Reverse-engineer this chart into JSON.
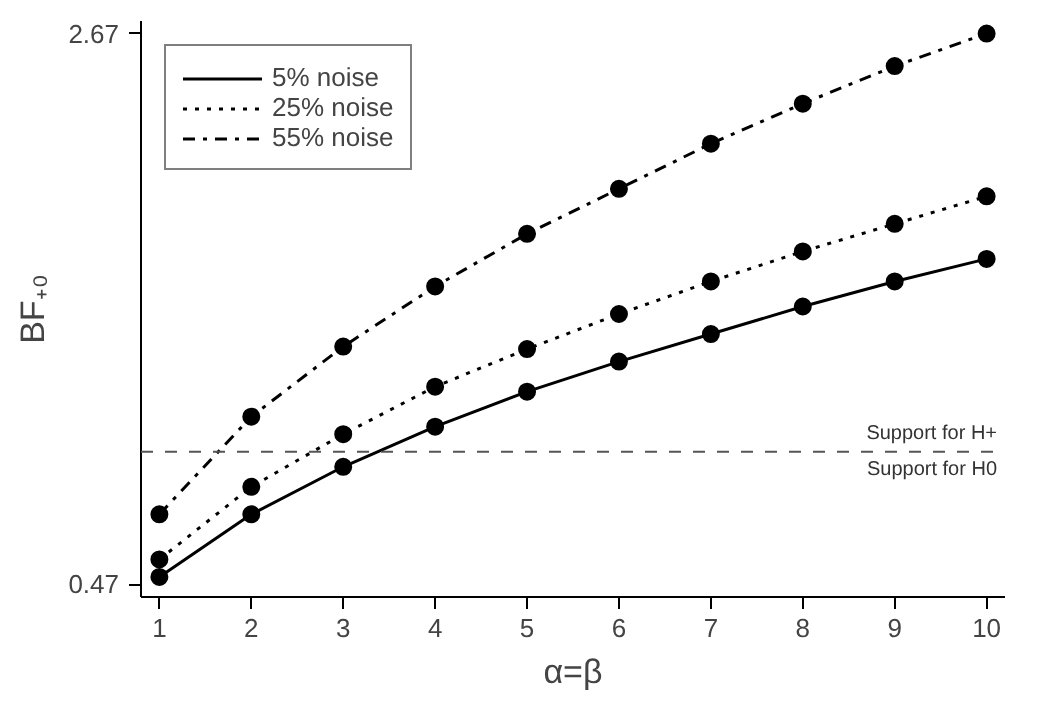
{
  "chart_data": {
    "type": "line",
    "xlabel": "α=β",
    "ylabel": "BF₊₀",
    "x": [
      1,
      2,
      3,
      4,
      5,
      6,
      7,
      8,
      9,
      10
    ],
    "series": [
      {
        "name": "5% noise",
        "color": "#000000",
        "line_style": "solid",
        "values": [
          0.5,
          0.75,
          0.94,
          1.1,
          1.24,
          1.36,
          1.47,
          1.58,
          1.68,
          1.77
        ]
      },
      {
        "name": "25% noise",
        "color": "#000000",
        "line_style": "dotted",
        "values": [
          0.57,
          0.86,
          1.07,
          1.26,
          1.41,
          1.55,
          1.68,
          1.8,
          1.91,
          2.02
        ]
      },
      {
        "name": "55% noise",
        "color": "#000000",
        "line_style": "dashdot",
        "values": [
          0.75,
          1.14,
          1.42,
          1.66,
          1.87,
          2.05,
          2.23,
          2.39,
          2.54,
          2.67
        ]
      }
    ],
    "marker": "circle",
    "grid": false,
    "legend": "top left",
    "xlim": [
      0.8,
      10.2
    ],
    "ylim": [
      0.42,
      2.72
    ],
    "xticks": [
      1,
      2,
      3,
      4,
      5,
      6,
      7,
      8,
      9,
      10
    ],
    "yticks": [
      0.47,
      2.67
    ],
    "ref_lines": [
      {
        "axis": "y",
        "value": 1,
        "color": "#555555",
        "line_style": "dashed"
      }
    ],
    "annotations": [
      "Support for H+",
      "Support for H0"
    ]
  }
}
